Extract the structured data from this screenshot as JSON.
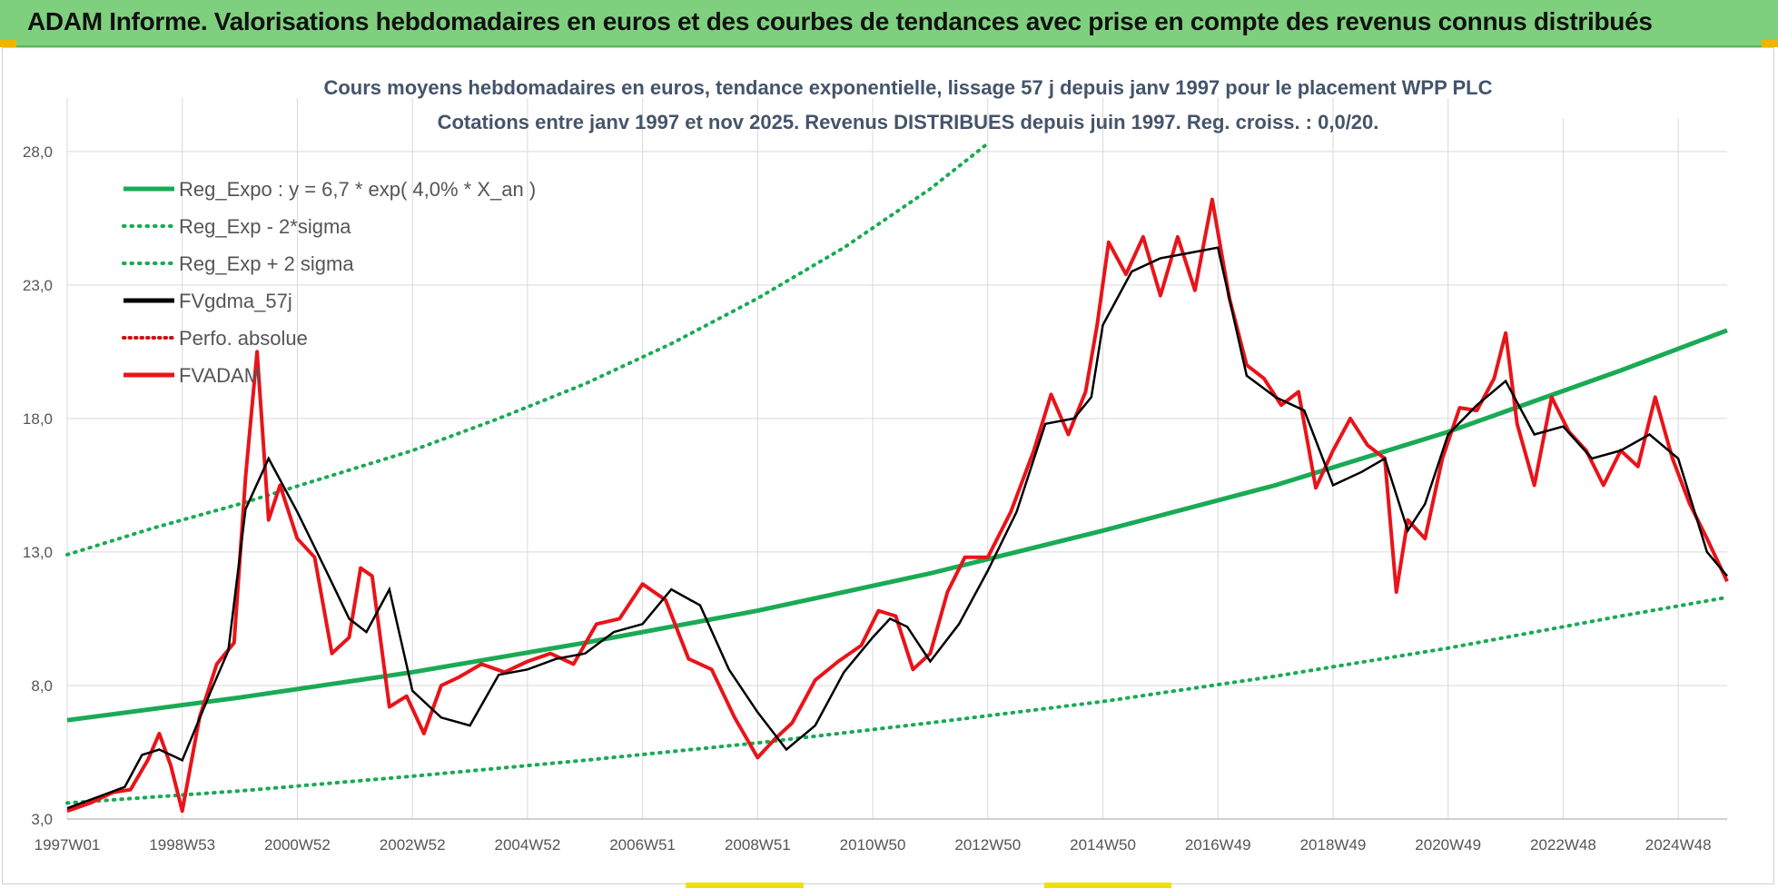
{
  "header": {
    "title": "ADAM Informe. Valorisations hebdomadaires en euros et des courbes de tendances avec prise en compte des revenus connus distribués"
  },
  "colors": {
    "banner": "#7ed07e",
    "reg_green": "#1aaa55",
    "black": "#000000",
    "red": "#e8141a",
    "dotted_red": "#d01010"
  },
  "chart_data": {
    "type": "line",
    "title_line1": "Cours moyens hebdomadaires en euros, tendance exponentielle, lissage 57 j depuis janv 1997 pour le placement WPP PLC",
    "title_line2": "Cotations entre janv 1997 et nov 2025. Revenus DISTRIBUES depuis juin 1997. Reg. croiss. : 0,0/20.",
    "xlabel": "",
    "ylabel": "",
    "ylim": [
      3.0,
      30.0
    ],
    "xlim": [
      1997.0,
      2025.85
    ],
    "y_ticks": [
      "3,0",
      "8,0",
      "13,0",
      "18,0",
      "23,0",
      "28,0"
    ],
    "y_tick_values": [
      3,
      8,
      13,
      18,
      23,
      28
    ],
    "x_ticks": [
      "1997W01",
      "1998W53",
      "2000W52",
      "2002W52",
      "2004W52",
      "2006W51",
      "2008W51",
      "2010W50",
      "2012W50",
      "2014W50",
      "2016W49",
      "2018W49",
      "2020W49",
      "2022W48",
      "2024W48"
    ],
    "x_tick_values": [
      1997.0,
      1999.0,
      2001.0,
      2003.0,
      2005.0,
      2007.0,
      2009.0,
      2011.0,
      2013.0,
      2015.0,
      2017.0,
      2019.0,
      2021.0,
      2023.0,
      2025.0
    ],
    "grid": true,
    "legend_position": "top-left",
    "series": [
      {
        "name": "Reg_Expo : y = 6,7 * exp( 4,0% *  X_an )",
        "style": "solid-green",
        "x": [
          1997.0,
          2000.0,
          2003.0,
          2006.0,
          2009.0,
          2012.0,
          2015.0,
          2018.0,
          2021.0,
          2024.0,
          2025.85
        ],
        "values": [
          6.7,
          7.55,
          8.5,
          9.6,
          10.8,
          12.2,
          13.8,
          15.5,
          17.5,
          19.8,
          21.3
        ]
      },
      {
        "name": "Reg_Exp - 2*sigma",
        "style": "dotted-green",
        "x": [
          1997.0,
          2000.0,
          2003.0,
          2006.0,
          2009.0,
          2012.0,
          2015.0,
          2018.0,
          2021.0,
          2024.0,
          2025.85
        ],
        "values": [
          3.6,
          4.05,
          4.6,
          5.2,
          5.85,
          6.6,
          7.4,
          8.35,
          9.4,
          10.6,
          11.3
        ]
      },
      {
        "name": "Reg_Exp + 2 sigma",
        "style": "dotted-green",
        "x": [
          1997.0,
          1998.5,
          2000.0,
          2001.5,
          2003.0,
          2004.5,
          2006.0,
          2007.5,
          2009.0,
          2010.5,
          2012.0,
          2013.0
        ],
        "values": [
          12.9,
          13.9,
          14.8,
          15.8,
          16.8,
          18.0,
          19.3,
          20.8,
          22.5,
          24.4,
          26.6,
          28.3
        ]
      },
      {
        "name": "FVgdma_57j",
        "style": "solid-black",
        "x": [
          1997.0,
          1997.5,
          1998.0,
          1998.3,
          1998.6,
          1999.0,
          1999.5,
          1999.8,
          2000.1,
          2000.5,
          2001.0,
          2001.5,
          2001.9,
          2002.2,
          2002.6,
          2003.0,
          2003.5,
          2004.0,
          2004.5,
          2005.0,
          2005.5,
          2006.0,
          2006.5,
          2007.0,
          2007.5,
          2008.0,
          2008.5,
          2009.0,
          2009.5,
          2010.0,
          2010.5,
          2011.0,
          2011.3,
          2011.6,
          2012.0,
          2012.5,
          2013.0,
          2013.5,
          2014.0,
          2014.5,
          2014.8,
          2015.0,
          2015.5,
          2016.0,
          2016.5,
          2017.0,
          2017.5,
          2018.0,
          2018.5,
          2019.0,
          2019.5,
          2019.9,
          2020.3,
          2020.6,
          2021.0,
          2021.5,
          2022.0,
          2022.5,
          2023.0,
          2023.5,
          2024.0,
          2024.5,
          2025.0,
          2025.5,
          2025.85
        ],
        "values": [
          3.4,
          3.8,
          4.2,
          5.4,
          5.6,
          5.2,
          7.8,
          9.3,
          14.6,
          16.5,
          14.5,
          12.3,
          10.5,
          10.0,
          11.6,
          7.8,
          6.8,
          6.5,
          8.4,
          8.6,
          9.0,
          9.2,
          10.0,
          10.3,
          11.6,
          11.0,
          8.6,
          7.0,
          5.6,
          6.5,
          8.5,
          9.8,
          10.5,
          10.2,
          8.9,
          10.3,
          12.3,
          14.5,
          17.8,
          18.0,
          18.8,
          21.5,
          23.5,
          24.0,
          24.2,
          24.4,
          19.6,
          18.8,
          18.3,
          15.5,
          16.0,
          16.5,
          13.8,
          14.8,
          17.4,
          18.5,
          19.4,
          17.4,
          17.7,
          16.5,
          16.8,
          17.4,
          16.5,
          13.0,
          12.1
        ]
      },
      {
        "name": "Perfo. absolue",
        "style": "dotted-red",
        "x": [],
        "values": []
      },
      {
        "name": "FVADAM",
        "style": "solid-red",
        "x": [
          1997.0,
          1997.4,
          1997.8,
          1998.1,
          1998.4,
          1998.6,
          1998.8,
          1999.0,
          1999.3,
          1999.6,
          1999.9,
          2000.1,
          2000.3,
          2000.5,
          2000.7,
          2001.0,
          2001.3,
          2001.6,
          2001.9,
          2002.1,
          2002.3,
          2002.6,
          2002.9,
          2003.2,
          2003.5,
          2003.8,
          2004.2,
          2004.6,
          2005.0,
          2005.4,
          2005.8,
          2006.2,
          2006.6,
          2007.0,
          2007.4,
          2007.8,
          2008.2,
          2008.6,
          2009.0,
          2009.3,
          2009.6,
          2010.0,
          2010.4,
          2010.8,
          2011.1,
          2011.4,
          2011.7,
          2012.0,
          2012.3,
          2012.6,
          2013.0,
          2013.4,
          2013.8,
          2014.1,
          2014.4,
          2014.7,
          2014.9,
          2015.1,
          2015.4,
          2015.7,
          2016.0,
          2016.3,
          2016.6,
          2016.9,
          2017.2,
          2017.5,
          2017.8,
          2018.1,
          2018.4,
          2018.7,
          2019.0,
          2019.3,
          2019.6,
          2019.9,
          2020.1,
          2020.3,
          2020.6,
          2020.9,
          2021.2,
          2021.5,
          2021.8,
          2022.0,
          2022.2,
          2022.5,
          2022.8,
          2023.1,
          2023.4,
          2023.7,
          2024.0,
          2024.3,
          2024.6,
          2024.9,
          2025.2,
          2025.5,
          2025.85
        ],
        "values": [
          3.3,
          3.6,
          4.0,
          4.1,
          5.2,
          6.2,
          5.0,
          3.3,
          6.8,
          8.8,
          9.6,
          15.8,
          20.5,
          14.2,
          15.5,
          13.5,
          12.8,
          9.2,
          9.8,
          12.4,
          12.1,
          7.2,
          7.6,
          6.2,
          8.0,
          8.3,
          8.8,
          8.5,
          8.9,
          9.2,
          8.8,
          10.3,
          10.5,
          11.8,
          11.2,
          9.0,
          8.6,
          6.8,
          5.3,
          6.0,
          6.6,
          8.2,
          8.9,
          9.5,
          10.8,
          10.6,
          8.6,
          9.2,
          11.5,
          12.8,
          12.8,
          14.5,
          16.8,
          18.9,
          17.4,
          19.0,
          21.5,
          24.6,
          23.4,
          24.8,
          22.6,
          24.8,
          22.8,
          26.2,
          22.5,
          20.0,
          19.5,
          18.5,
          19.0,
          15.4,
          16.8,
          18.0,
          17.0,
          16.5,
          11.5,
          14.2,
          13.5,
          16.5,
          18.4,
          18.3,
          19.5,
          21.2,
          17.8,
          15.5,
          18.8,
          17.5,
          16.8,
          15.5,
          16.8,
          16.2,
          18.8,
          16.5,
          14.8,
          13.5,
          11.9
        ]
      }
    ]
  }
}
